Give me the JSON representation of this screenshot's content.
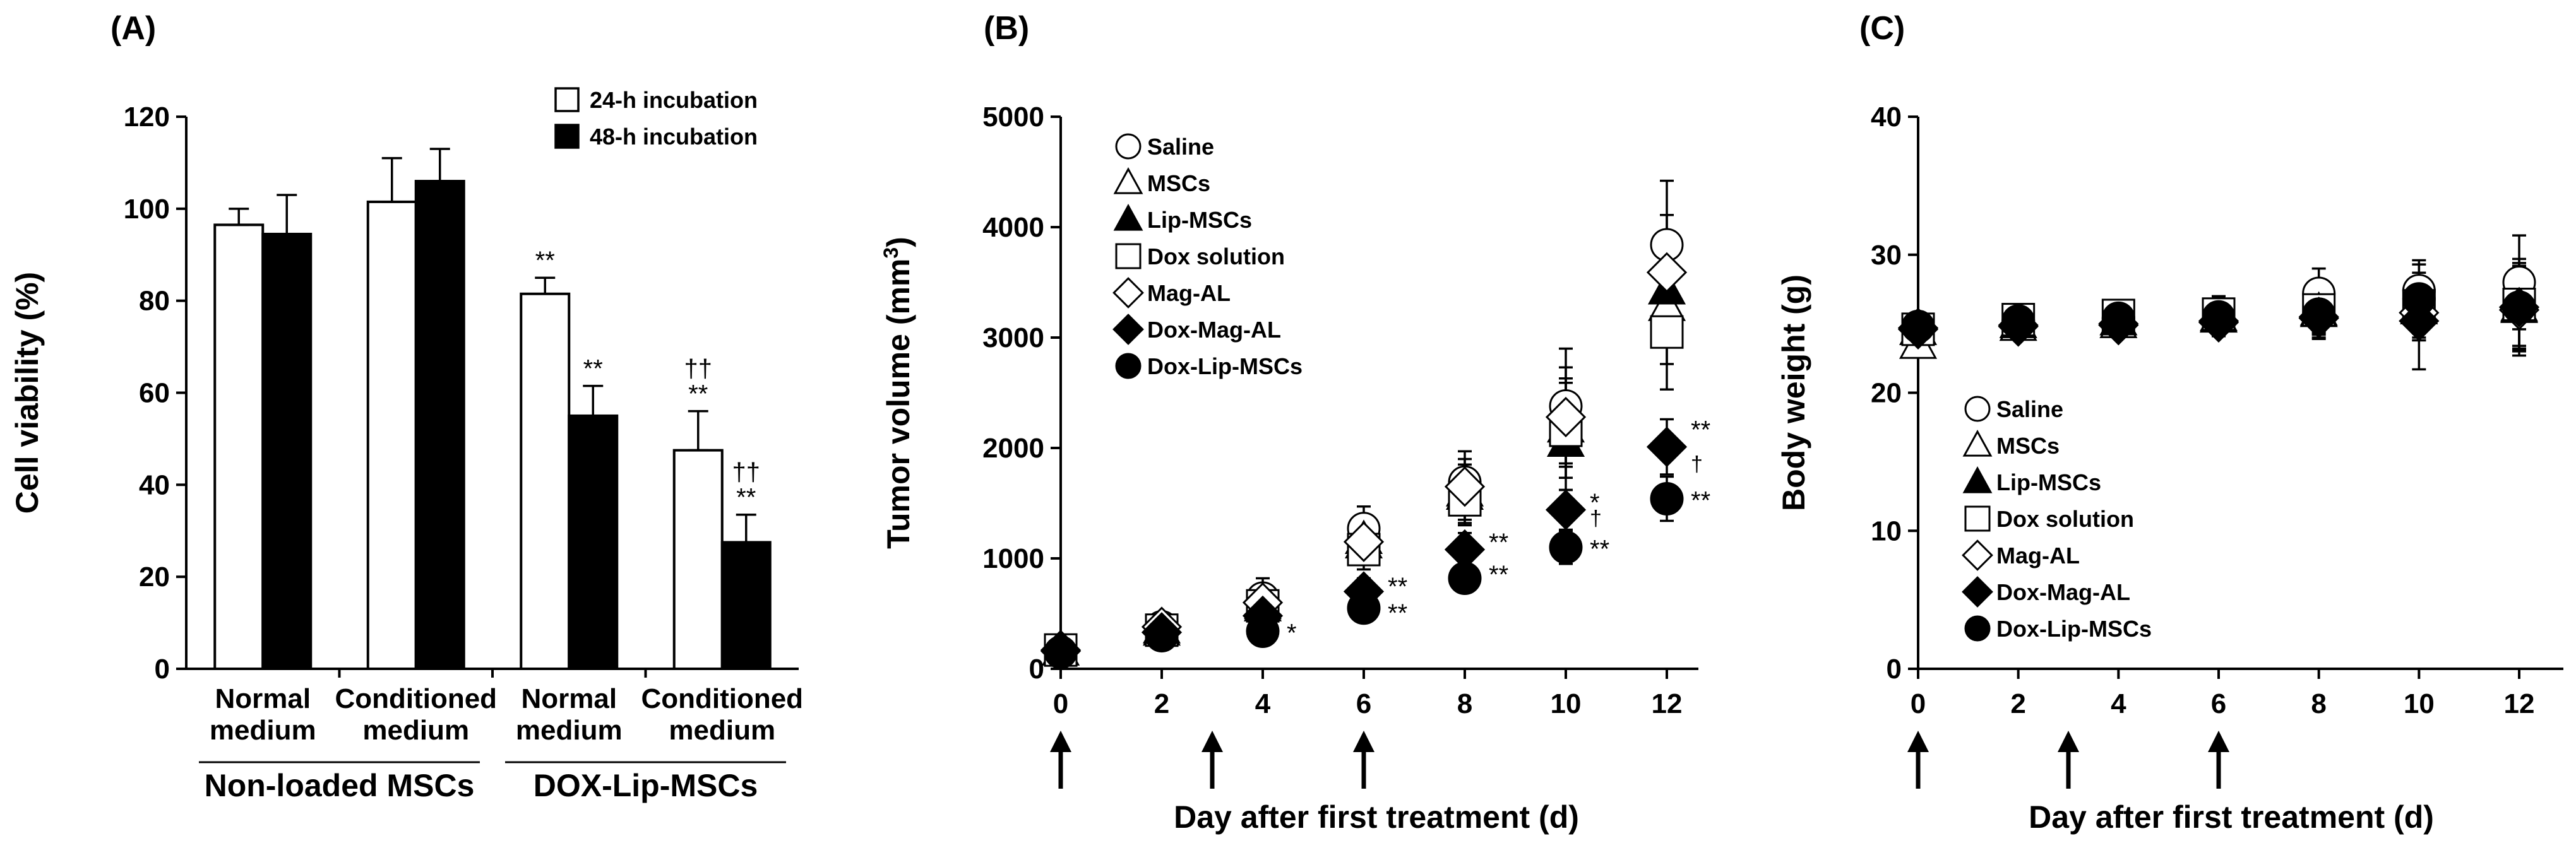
{
  "panels": {
    "A": {
      "label": "(A)",
      "chart_data": {
        "type": "bar",
        "ylabel": "Cell viability (%)",
        "ylim": [
          0,
          120
        ],
        "yticks": [
          0,
          20,
          40,
          60,
          80,
          100,
          120
        ],
        "categories": [
          {
            "line1": "Normal",
            "line2": "medium"
          },
          {
            "line1": "Conditioned",
            "line2": "medium"
          },
          {
            "line1": "Normal",
            "line2": "medium"
          },
          {
            "line1": "Conditioned",
            "line2": "medium"
          }
        ],
        "groups": [
          {
            "label": "Non-loaded MSCs",
            "categories": [
              0,
              1
            ]
          },
          {
            "label": "DOX-Lip-MSCs",
            "categories": [
              2,
              3
            ]
          }
        ],
        "series": [
          {
            "name": "24-h incubation",
            "fill": "#ffffff",
            "values": [
              96.5,
              101.5,
              81.5,
              47.5
            ],
            "errors": [
              3.5,
              9.5,
              3.5,
              8.5
            ],
            "annotations": [
              "",
              "",
              "**",
              "††|**"
            ]
          },
          {
            "name": "48-h incubation",
            "fill": "#000000",
            "values": [
              94.5,
              106,
              55,
              27.5
            ],
            "errors": [
              8.5,
              7,
              6.5,
              6
            ],
            "annotations": [
              "",
              "",
              "**",
              "††|**"
            ]
          }
        ],
        "legend_position": "top-right"
      }
    },
    "B": {
      "label": "(B)",
      "chart_data": {
        "type": "scatter",
        "xlabel": "Day after first treatment (d)",
        "ylabel": "Tumor volume (mm",
        "ylabel_sup": "3",
        "ylabel_end": ")",
        "xlim": [
          0,
          12
        ],
        "ylim": [
          0,
          5000
        ],
        "xticks": [
          0,
          2,
          4,
          6,
          8,
          10,
          12
        ],
        "yticks": [
          0,
          1000,
          2000,
          3000,
          4000,
          5000
        ],
        "x": [
          0,
          2,
          4,
          6,
          8,
          10,
          12
        ],
        "treatment_days": [
          0,
          3,
          6
        ],
        "series": [
          {
            "name": "Saline",
            "marker": "circle",
            "filled": false,
            "y": [
              170,
              380,
              640,
              1270,
              1690,
              2380,
              3840
            ],
            "err": [
              60,
              80,
              180,
              200,
              280,
              520,
              580
            ]
          },
          {
            "name": "MSCs",
            "marker": "triangle",
            "filled": false,
            "y": [
              160,
              360,
              580,
              1170,
              1570,
              2180,
              3280
            ],
            "err": [
              60,
              70,
              150,
              180,
              250,
              450,
              520
            ]
          },
          {
            "name": "Lip-MSCs",
            "marker": "triangle",
            "filled": true,
            "y": [
              160,
              340,
              560,
              1130,
              1600,
              2050,
              3430
            ],
            "err": [
              60,
              70,
              150,
              180,
              250,
              430,
              520
            ]
          },
          {
            "name": "Dox solution",
            "marker": "square",
            "filled": false,
            "y": [
              170,
              350,
              570,
              1080,
              1530,
              2160,
              3050
            ],
            "err": [
              60,
              70,
              150,
              180,
              230,
              430,
              520
            ]
          },
          {
            "name": "Mag-AL",
            "marker": "diamond",
            "filled": false,
            "y": [
              170,
              380,
              600,
              1150,
              1650,
              2280,
              3590
            ],
            "err": [
              60,
              70,
              150,
              180,
              250,
              450,
              520
            ]
          },
          {
            "name": "Dox-Mag-AL",
            "marker": "diamond",
            "filled": true,
            "y": [
              160,
              330,
              480,
              700,
              1080,
              1440,
              2010
            ],
            "err": [
              40,
              60,
              90,
              120,
              150,
              180,
              250
            ]
          },
          {
            "name": "Dox-Lip-MSCs",
            "marker": "circle",
            "filled": true,
            "y": [
              150,
              300,
              340,
              550,
              820,
              1100,
              1540
            ],
            "err": [
              40,
              50,
              60,
              90,
              120,
              150,
              200
            ]
          }
        ],
        "annotations": [
          {
            "x": 4,
            "y": 340,
            "text": "*"
          },
          {
            "x": 6,
            "y": 760,
            "text": "**"
          },
          {
            "x": 6,
            "y": 520,
            "text": "**"
          },
          {
            "x": 8,
            "y": 1160,
            "text": "**"
          },
          {
            "x": 8,
            "y": 870,
            "text": "**"
          },
          {
            "x": 10,
            "y": 1520,
            "text": "*"
          },
          {
            "x": 10,
            "y": 1390,
            "text": "†"
          },
          {
            "x": 10,
            "y": 1100,
            "text": "**"
          },
          {
            "x": 12,
            "y": 2180,
            "text": "**"
          },
          {
            "x": 12,
            "y": 1880,
            "text": "†"
          },
          {
            "x": 12,
            "y": 1540,
            "text": "**"
          }
        ],
        "legend_position": "top-left"
      }
    },
    "C": {
      "label": "(C)",
      "chart_data": {
        "type": "scatter",
        "xlabel": "Day after first treatment (d)",
        "ylabel": "Body weight (g)",
        "xlim": [
          0,
          12
        ],
        "ylim": [
          0,
          40
        ],
        "xticks": [
          0,
          2,
          4,
          6,
          8,
          10,
          12
        ],
        "yticks": [
          0,
          10,
          20,
          30,
          40
        ],
        "x": [
          0,
          2,
          4,
          6,
          8,
          10,
          12
        ],
        "treatment_days": [
          0,
          3,
          6
        ],
        "series": [
          {
            "name": "Saline",
            "marker": "circle",
            "filled": false,
            "y": [
              24.8,
              25.2,
              25.4,
              25.8,
              27.2,
              27.4,
              28.0
            ],
            "err": [
              0.8,
              0.8,
              0.8,
              1.2,
              1.8,
              2.2,
              3.4
            ]
          },
          {
            "name": "MSCs",
            "marker": "triangle",
            "filled": false,
            "y": [
              23.5,
              24.8,
              25.0,
              25.5,
              25.8,
              26.0,
              26.2
            ],
            "err": [
              0.8,
              0.8,
              0.8,
              1.0,
              1.5,
              2.2,
              3.0
            ]
          },
          {
            "name": "Lip-MSCs",
            "marker": "triangle",
            "filled": true,
            "y": [
              24.5,
              25.0,
              25.2,
              25.4,
              25.9,
              26.0,
              26.1
            ],
            "err": [
              0.8,
              0.8,
              0.8,
              1.0,
              1.5,
              2.0,
              3.0
            ]
          },
          {
            "name": "Dox solution",
            "marker": "square",
            "filled": false,
            "y": [
              24.6,
              25.3,
              25.6,
              25.7,
              26.0,
              26.3,
              26.4
            ],
            "err": [
              0.8,
              0.8,
              0.8,
              1.0,
              1.5,
              2.0,
              3.0
            ]
          },
          {
            "name": "Mag-AL",
            "marker": "diamond",
            "filled": false,
            "y": [
              24.7,
              24.8,
              25.0,
              25.2,
              25.5,
              25.8,
              26.0
            ],
            "err": [
              0.8,
              0.8,
              0.8,
              1.0,
              1.5,
              2.0,
              3.0
            ]
          },
          {
            "name": "Dox-Mag-AL",
            "marker": "diamond",
            "filled": true,
            "y": [
              24.6,
              24.9,
              24.9,
              25.1,
              25.4,
              25.2,
              26.2
            ],
            "err": [
              0.8,
              0.8,
              0.8,
              1.0,
              1.5,
              3.5,
              3.5
            ]
          },
          {
            "name": "Dox-Lip-MSCs",
            "marker": "circle",
            "filled": true,
            "y": [
              24.8,
              25.2,
              25.4,
              25.5,
              25.7,
              26.8,
              26.2
            ],
            "err": [
              0.8,
              0.8,
              0.8,
              1.0,
              1.5,
              2.5,
              3.0
            ]
          }
        ],
        "legend_position": "bottom-left"
      }
    }
  }
}
